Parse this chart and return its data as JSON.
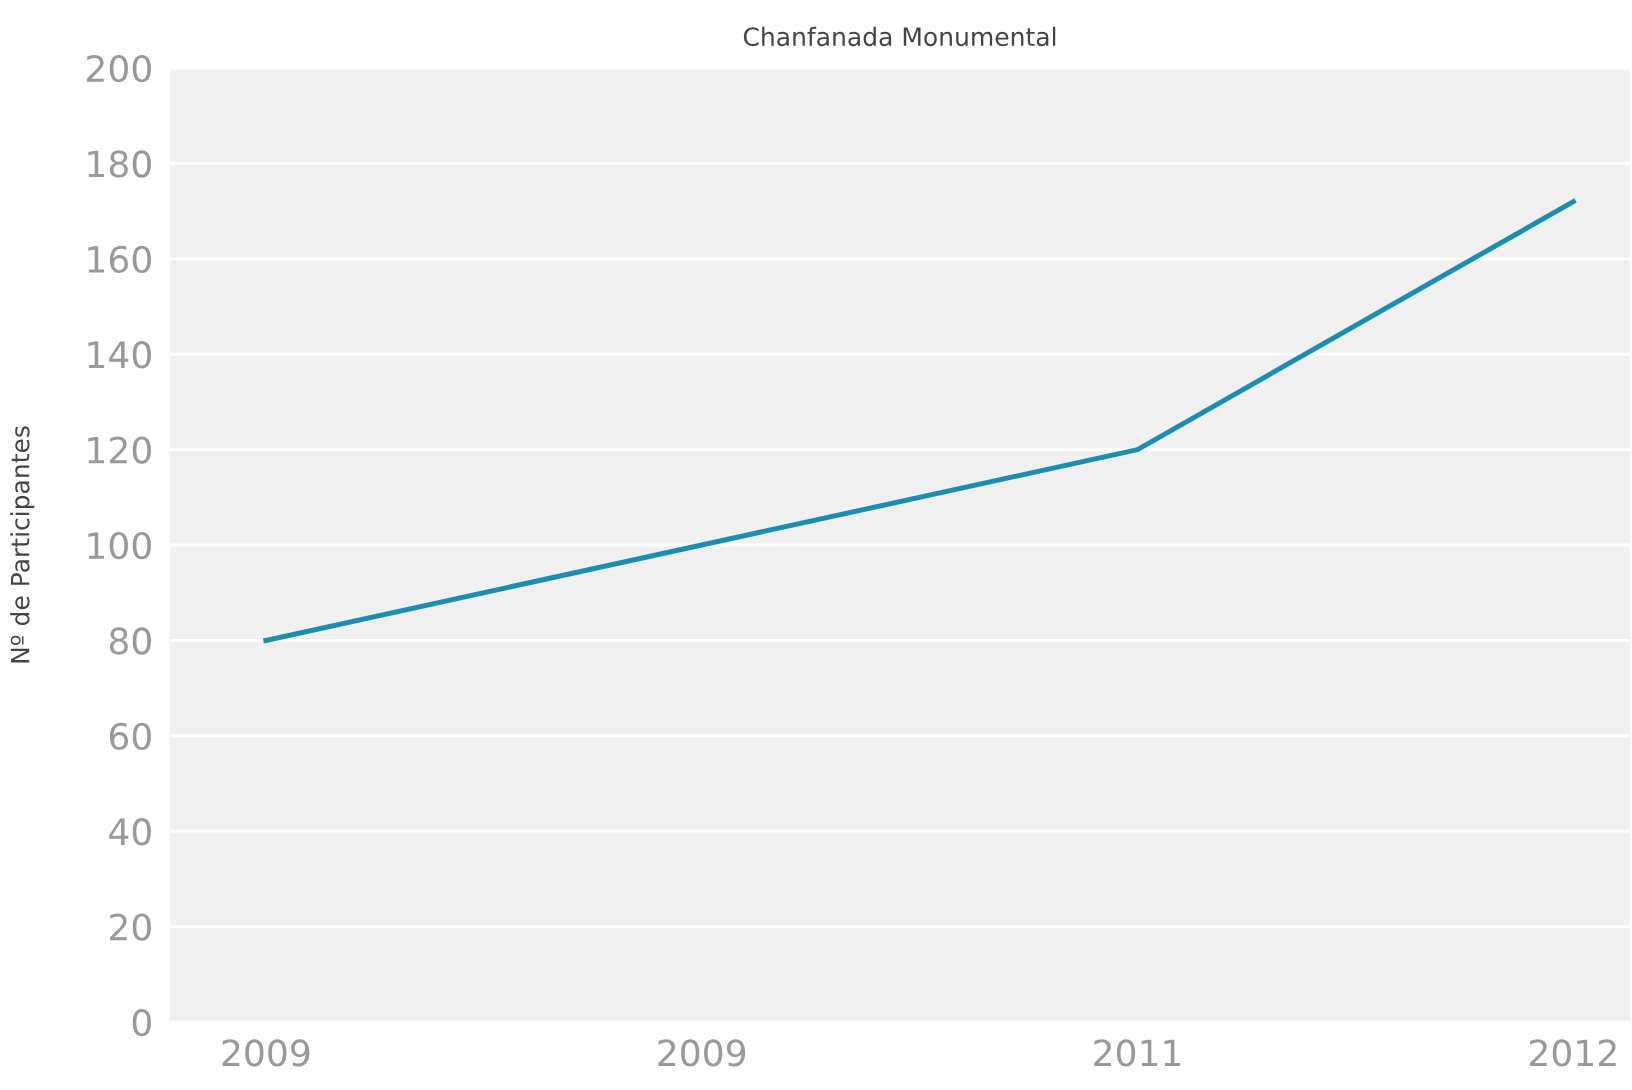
{
  "chart_data": {
    "type": "line",
    "title": "Chanfanada Monumental",
    "ylabel": "Nº de Participantes",
    "categories": [
      "2009",
      "2009",
      "2011",
      "2012"
    ],
    "series": [
      {
        "color": "#1a8db3",
        "values": [
          80,
          100,
          120,
          172
        ]
      }
    ],
    "ylim": [
      0,
      200
    ],
    "yticks": [
      0,
      20,
      40,
      60,
      80,
      100,
      120,
      140,
      160,
      180,
      200
    ],
    "grid": "y",
    "marker": "none",
    "line_style": "solid"
  }
}
